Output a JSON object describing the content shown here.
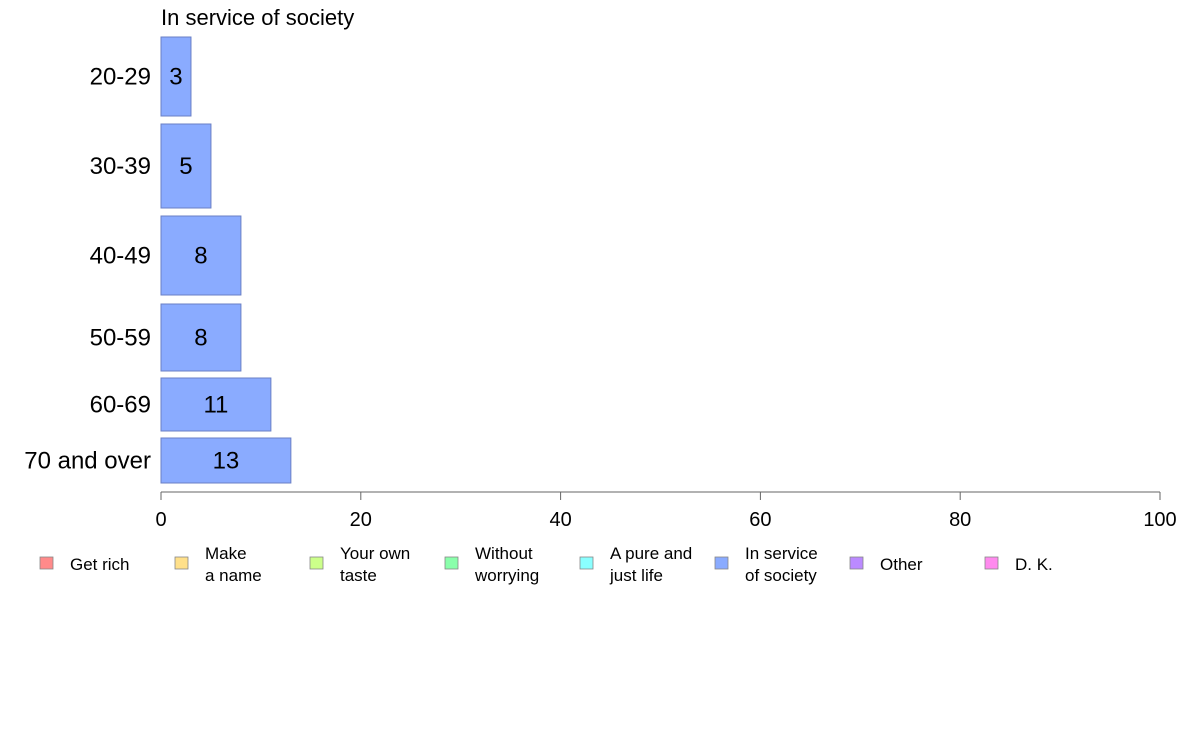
{
  "chart_data": {
    "type": "bar",
    "orientation": "horizontal",
    "title": "In service of society",
    "xlabel": "",
    "ylabel": "",
    "xlim": [
      0,
      100
    ],
    "x_ticks": [
      "0",
      "20",
      "40",
      "60",
      "80",
      "100"
    ],
    "categories": [
      "20-29",
      "30-39",
      "40-49",
      "50-59",
      "60-69",
      "70 and over"
    ],
    "series": [
      {
        "name": "In service of society",
        "color": "#8aabff",
        "values": [
          3,
          5,
          8,
          8,
          11,
          13
        ],
        "labels": [
          "3",
          "5",
          "8",
          "8",
          "11",
          "13"
        ]
      }
    ],
    "grid": false,
    "legend_position": "bottom",
    "legend": [
      {
        "lines": [
          "Get rich"
        ],
        "color": "#ff8a8a"
      },
      {
        "lines": [
          "Make",
          "a name"
        ],
        "color": "#ffe08a"
      },
      {
        "lines": [
          "Your own",
          "taste"
        ],
        "color": "#ccff8a"
      },
      {
        "lines": [
          "Without",
          "worrying"
        ],
        "color": "#8affab"
      },
      {
        "lines": [
          "A pure and",
          "just life"
        ],
        "color": "#8affff"
      },
      {
        "lines": [
          "In service",
          "of society"
        ],
        "color": "#8aabff"
      },
      {
        "lines": [
          "Other"
        ],
        "color": "#bb8aff"
      },
      {
        "lines": [
          "D. K."
        ],
        "color": "#ff8aee"
      }
    ]
  }
}
